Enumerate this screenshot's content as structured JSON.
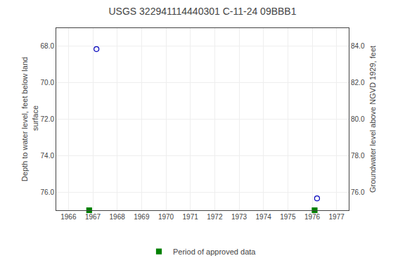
{
  "chart_data": {
    "type": "scatter",
    "title": "USGS 322941114440301 C-11-24 09BBB1",
    "y_label": "Depth to water level, feet below land\n surface",
    "y2_label": "Groundwater level above NGVD 1929, feet",
    "xlim": [
      1965.5,
      1977.5
    ],
    "xticks": [
      1966,
      1967,
      1968,
      1969,
      1970,
      1971,
      1972,
      1973,
      1974,
      1975,
      1976,
      1977
    ],
    "ylim": [
      77.0,
      67.0
    ],
    "yticks": [
      {
        "value": 68.0,
        "label": "68.0"
      },
      {
        "value": 70.0,
        "label": "70.0"
      },
      {
        "value": 72.0,
        "label": "72.0"
      },
      {
        "value": 74.0,
        "label": "74.0"
      },
      {
        "value": 76.0,
        "label": "76.0"
      }
    ],
    "y2lim": [
      75.0,
      85.0
    ],
    "y2ticks": [
      {
        "value": 76.0,
        "label": "76.0"
      },
      {
        "value": 78.0,
        "label": "78.0"
      },
      {
        "value": 80.0,
        "label": "80.0"
      },
      {
        "value": 82.0,
        "label": "82.0"
      },
      {
        "value": 84.0,
        "label": "84.0"
      }
    ],
    "grid": true,
    "legend": "bottom",
    "series": [
      {
        "x": [
          1967.15,
          1976.2
        ],
        "values": [
          68.15,
          76.35
        ],
        "color": "#0000bb",
        "marker": "circle-open"
      },
      {
        "name": "Period of approved data",
        "x": [
          1966.85,
          1976.1
        ],
        "values": [
          77.0,
          77.0
        ],
        "color": "#008000",
        "marker": "square"
      }
    ]
  }
}
